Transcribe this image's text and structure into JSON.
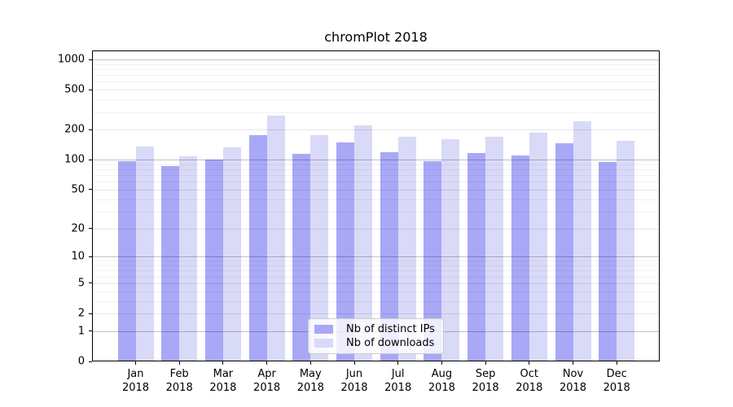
{
  "chart_data": {
    "type": "bar",
    "title": "chromPlot 2018",
    "categories": [
      "Jan 2018",
      "Feb 2018",
      "Mar 2018",
      "Apr 2018",
      "May 2018",
      "Jun 2018",
      "Jul 2018",
      "Aug 2018",
      "Sep 2018",
      "Oct 2018",
      "Nov 2018",
      "Dec 2018"
    ],
    "series": [
      {
        "name": "Nb of distinct IPs",
        "color": "#a8a8f7",
        "values": [
          96,
          87,
          100,
          175,
          115,
          149,
          118,
          97,
          116,
          110,
          147,
          95
        ]
      },
      {
        "name": "Nb of downloads",
        "color": "#d9d9f8",
        "values": [
          136,
          108,
          134,
          275,
          176,
          221,
          171,
          160,
          171,
          186,
          241,
          154
        ]
      }
    ],
    "xlabel": "",
    "ylabel": "",
    "yscale": "log1p",
    "ylim": [
      0,
      1000
    ],
    "grid": "on",
    "legend_position": "lower center"
  },
  "y_axis": {
    "ticks": [
      {
        "label": "1000",
        "value": 1000
      },
      {
        "label": "500",
        "value": 500
      },
      {
        "label": "200",
        "value": 200
      },
      {
        "label": "100",
        "value": 100
      },
      {
        "label": "50",
        "value": 50
      },
      {
        "label": "20",
        "value": 20
      },
      {
        "label": "10",
        "value": 10
      },
      {
        "label": "5",
        "value": 5
      },
      {
        "label": "2",
        "value": 2
      },
      {
        "label": "1",
        "value": 1
      },
      {
        "label": "0",
        "value": 0
      }
    ]
  },
  "colors": {
    "grid_major": "rgba(0,0,0,0.24)",
    "grid_mid": "rgba(0,0,0,0.10)",
    "grid_minor": "rgba(0,0,0,0.055)",
    "spine": "#000000",
    "legend_border": "#cccccc"
  }
}
